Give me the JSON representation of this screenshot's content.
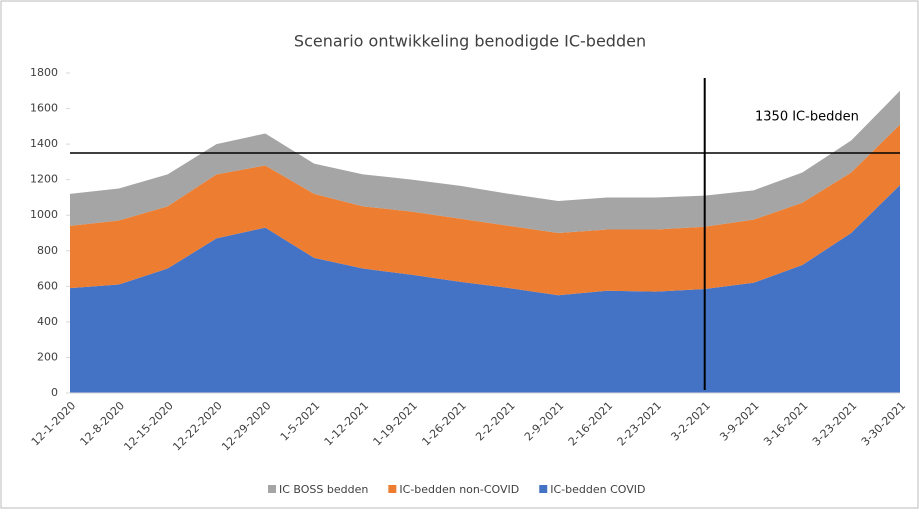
{
  "chart_data": {
    "type": "stacked-area",
    "title": "Scenario ontwikkeling benodigde IC-bedden",
    "categories": [
      "12-1-2020",
      "12-8-2020",
      "12-15-2020",
      "12-22-2020",
      "12-29-2020",
      "1-5-2021",
      "1-12-2021",
      "1-19-2021",
      "1-26-2021",
      "2-2-2021",
      "2-9-2021",
      "2-16-2021",
      "2-23-2021",
      "3-2-2021",
      "3-9-2021",
      "3-16-2021",
      "3-23-2021",
      "3-30-2021"
    ],
    "series": [
      {
        "name": "IC BOSS bedden",
        "color": "#a5a5a5",
        "values": [
          180,
          180,
          180,
          170,
          180,
          170,
          180,
          180,
          185,
          180,
          180,
          180,
          180,
          175,
          165,
          170,
          180,
          190
        ]
      },
      {
        "name": "IC-bedden non-COVID",
        "color": "#ed7d31",
        "values": [
          350,
          360,
          350,
          360,
          350,
          360,
          350,
          355,
          355,
          350,
          350,
          345,
          350,
          350,
          355,
          350,
          340,
          340
        ]
      },
      {
        "name": "IC-bedden COVID",
        "color": "#4472c4",
        "values": [
          590,
          610,
          700,
          870,
          930,
          760,
          700,
          665,
          625,
          590,
          550,
          575,
          570,
          585,
          620,
          720,
          900,
          1170
        ]
      }
    ],
    "ylim": [
      0,
      1800
    ],
    "yticks": [
      0,
      200,
      400,
      600,
      800,
      1000,
      1200,
      1400,
      1600,
      1800
    ],
    "reference_line": {
      "value": 1350,
      "label": "1350 IC-bedden"
    },
    "vertical_line": "3-2-2021",
    "legend": "bottom"
  }
}
